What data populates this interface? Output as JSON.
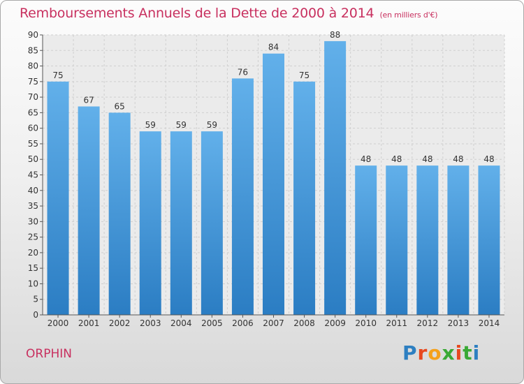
{
  "header": {
    "title": "Remboursements Annuels de la Dette de 2000 à 2014",
    "unit": "(en milliers d'€)"
  },
  "commune": "ORPHIN",
  "brand": {
    "letters": [
      "P",
      "r",
      "o",
      "x",
      "i",
      "t",
      "i"
    ],
    "colors": [
      "#2d7fc1",
      "#e8491f",
      "#f5a11c",
      "#3aa935",
      "#e8491f",
      "#3aa935",
      "#2d7fc1"
    ]
  },
  "colors": {
    "bar": "#3a8fd5",
    "bar_light": "#62b0ea",
    "title": "#c8305f"
  },
  "chart_data": {
    "type": "bar",
    "title": "Remboursements Annuels de la Dette de 2000 à 2014",
    "categories": [
      "2000",
      "2001",
      "2002",
      "2003",
      "2004",
      "2005",
      "2006",
      "2007",
      "2008",
      "2009",
      "2010",
      "2011",
      "2012",
      "2013",
      "2014"
    ],
    "values": [
      75,
      67,
      65,
      59,
      59,
      59,
      76,
      84,
      75,
      88,
      48,
      48,
      48,
      48,
      48
    ],
    "ylim": [
      0,
      90
    ],
    "yticks": [
      0,
      5,
      10,
      15,
      20,
      25,
      30,
      35,
      40,
      45,
      50,
      55,
      60,
      65,
      70,
      75,
      80,
      85,
      90
    ],
    "grid": true,
    "legend": "none"
  }
}
